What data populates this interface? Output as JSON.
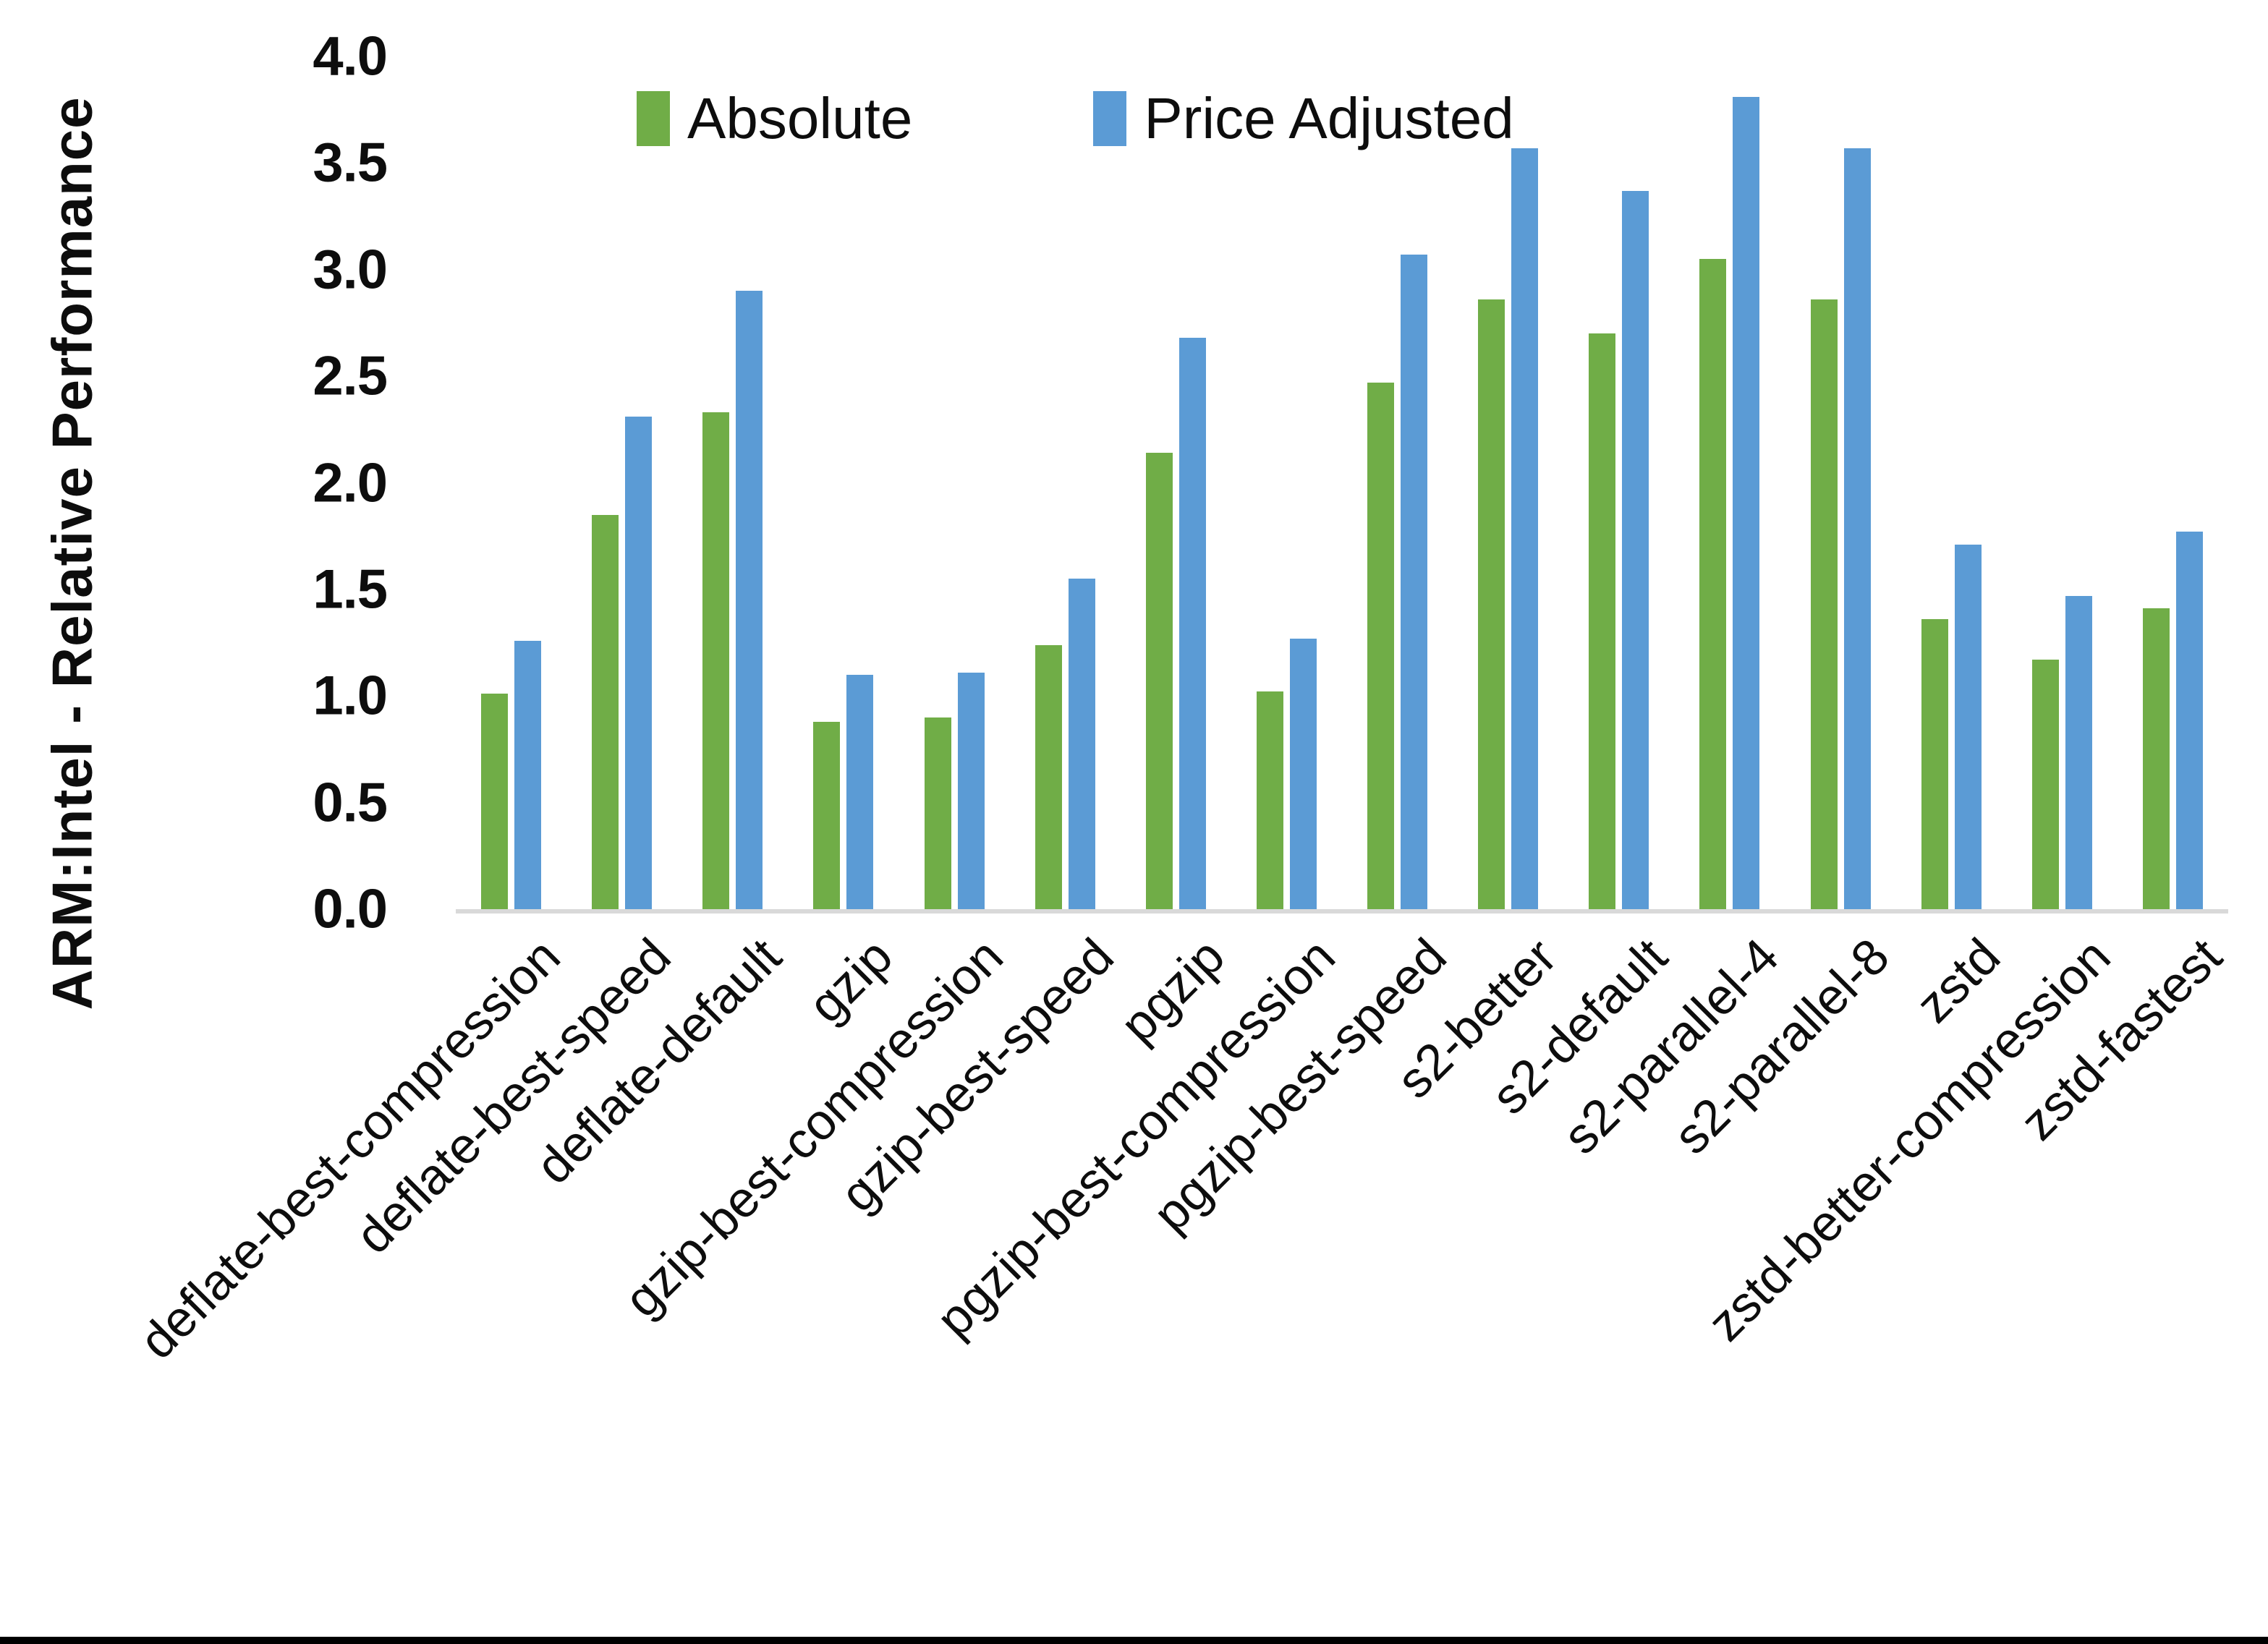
{
  "y_axis": {
    "title": "ARM:Intel - Relative Performance"
  },
  "legend": {
    "items": [
      {
        "label": "Absolute",
        "color": "#70AD47"
      },
      {
        "label": "Price Adjusted",
        "color": "#5B9BD5"
      }
    ],
    "position": "top-center"
  },
  "chart_data": {
    "type": "bar",
    "title": "",
    "xlabel": "",
    "ylabel": "ARM:Intel - Relative Performance",
    "ylim": [
      0.0,
      4.0
    ],
    "ytick_step": 0.5,
    "y_tick_labels": [
      "0.0",
      "0.5",
      "1.0",
      "1.5",
      "2.0",
      "2.5",
      "3.0",
      "3.5",
      "4.0"
    ],
    "grid": false,
    "legend_position": "top-center",
    "axis_line_color": "#D9D9D9",
    "categories": [
      "deflate-best-compression",
      "deflate-best-speed",
      "deflate-default",
      "gzip",
      "gzip-best-compression",
      "gzip-best-speed",
      "pgzip",
      "pgzip-best-compression",
      "pgzip-best-speed",
      "s2-better",
      "s2-default",
      "s2-parallel-4",
      "s2-parallel-8",
      "zstd",
      "zstd-better-compression",
      "zstd-fastest"
    ],
    "series": [
      {
        "name": "Absolute",
        "color": "#70AD47",
        "values": [
          1.01,
          1.85,
          2.33,
          0.88,
          0.9,
          1.24,
          2.14,
          1.02,
          2.47,
          2.86,
          2.7,
          3.05,
          2.86,
          1.36,
          1.17,
          1.41
        ]
      },
      {
        "name": "Price Adjusted",
        "color": "#5B9BD5",
        "values": [
          1.26,
          2.31,
          2.9,
          1.1,
          1.11,
          1.55,
          2.68,
          1.27,
          3.07,
          3.57,
          3.37,
          3.81,
          3.57,
          1.71,
          1.47,
          1.77
        ]
      }
    ]
  }
}
